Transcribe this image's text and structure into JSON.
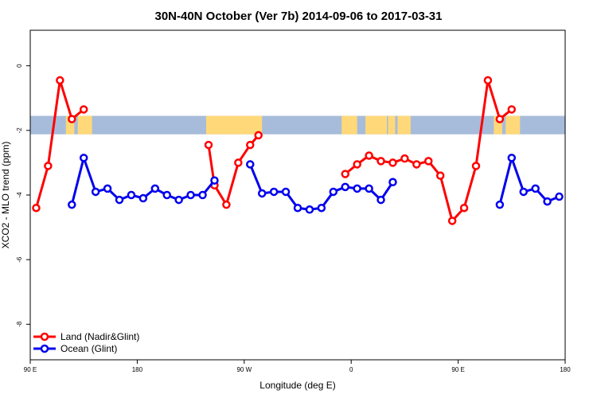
{
  "chart_data": {
    "type": "line",
    "title": "30N-40N October (Ver 7b)   2014-09-06 to 2017-03-31",
    "xlabel": "Longitude (deg E)",
    "ylabel": "XCO2 - MLO trend (ppm)",
    "x_range_deg_from_90E": [
      0,
      450
    ],
    "ylim": [
      -9.1,
      1.1
    ],
    "x_ticks": [
      {
        "value": 0,
        "label": "90 E"
      },
      {
        "value": 90,
        "label": "180"
      },
      {
        "value": 180,
        "label": "90 W"
      },
      {
        "value": 270,
        "label": "0"
      },
      {
        "value": 360,
        "label": "90 E"
      },
      {
        "value": 450,
        "label": "180"
      }
    ],
    "y_ticks": [
      {
        "value": 0,
        "label": "0"
      },
      {
        "value": -2,
        "label": "-2"
      },
      {
        "value": -4,
        "label": "-4"
      },
      {
        "value": -6,
        "label": "-6"
      },
      {
        "value": -8,
        "label": "-8"
      }
    ],
    "land_mask_band": {
      "y_range": [
        -2.12,
        -1.55
      ],
      "ocean_color": "#a7bcdb",
      "land_color": "#ffd979",
      "land_segments": [
        [
          30,
          37
        ],
        [
          40,
          52
        ],
        [
          148,
          195
        ],
        [
          262,
          275
        ],
        [
          282,
          300
        ],
        [
          301,
          307
        ],
        [
          309,
          320
        ],
        [
          390,
          397
        ],
        [
          400,
          412
        ]
      ]
    },
    "series": [
      {
        "name": "Land (Nadir&Glint)",
        "color": "#ff0000",
        "segments": [
          [
            [
              5,
              -4.4
            ],
            [
              15,
              -3.1
            ],
            [
              25,
              -0.45
            ],
            [
              35,
              -1.65
            ],
            [
              45,
              -1.35
            ]
          ],
          [
            [
              150,
              -2.45
            ],
            [
              155,
              -3.7
            ],
            [
              165,
              -4.3
            ],
            [
              175,
              -3.0
            ],
            [
              185,
              -2.45
            ],
            [
              192,
              -2.15
            ]
          ],
          [
            [
              265,
              -3.35
            ],
            [
              275,
              -3.05
            ],
            [
              285,
              -2.78
            ],
            [
              295,
              -2.95
            ],
            [
              305,
              -3.0
            ],
            [
              315,
              -2.87
            ],
            [
              325,
              -3.05
            ],
            [
              335,
              -2.95
            ],
            [
              345,
              -3.4
            ],
            [
              355,
              -4.8
            ],
            [
              365,
              -4.4
            ],
            [
              375,
              -3.1
            ],
            [
              385,
              -0.45
            ],
            [
              395,
              -1.65
            ],
            [
              405,
              -1.35
            ]
          ]
        ]
      },
      {
        "name": "Ocean (Glint)",
        "color": "#0000ee",
        "segments": [
          [
            [
              35,
              -4.3
            ],
            [
              45,
              -2.85
            ],
            [
              55,
              -3.9
            ],
            [
              65,
              -3.8
            ],
            [
              75,
              -4.15
            ],
            [
              85,
              -4.0
            ],
            [
              95,
              -4.1
            ],
            [
              105,
              -3.8
            ],
            [
              115,
              -4.0
            ],
            [
              125,
              -4.15
            ],
            [
              135,
              -4.0
            ],
            [
              145,
              -4.0
            ],
            [
              155,
              -3.55
            ]
          ],
          [
            [
              185,
              -3.05
            ],
            [
              195,
              -3.95
            ],
            [
              205,
              -3.9
            ],
            [
              215,
              -3.9
            ],
            [
              225,
              -4.4
            ],
            [
              235,
              -4.45
            ],
            [
              245,
              -4.4
            ],
            [
              255,
              -3.9
            ],
            [
              265,
              -3.75
            ],
            [
              275,
              -3.8
            ],
            [
              285,
              -3.8
            ],
            [
              295,
              -4.15
            ],
            [
              305,
              -3.6
            ]
          ],
          [
            [
              395,
              -4.3
            ],
            [
              405,
              -2.85
            ],
            [
              415,
              -3.9
            ],
            [
              425,
              -3.8
            ],
            [
              435,
              -4.2
            ],
            [
              445,
              -4.05
            ]
          ]
        ]
      }
    ],
    "legend": {
      "position": "bottom-left"
    }
  }
}
